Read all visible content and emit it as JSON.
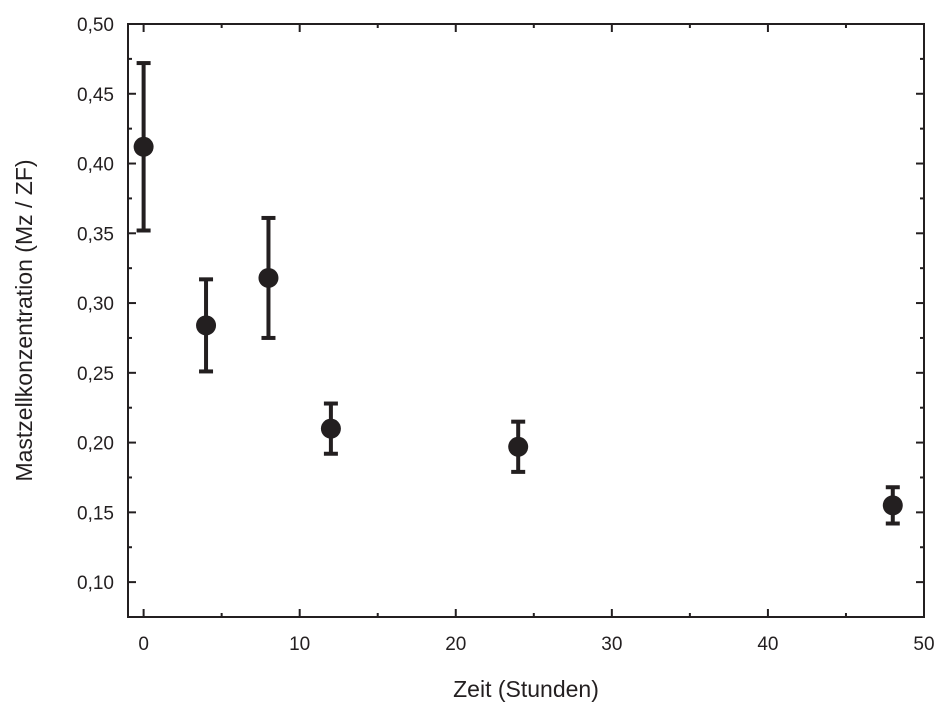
{
  "chart_data": {
    "type": "scatter",
    "title": "",
    "xlabel": "Zeit (Stunden)",
    "ylabel": "Mastzellkonzentration (Mz / ZF)",
    "xlim": [
      -1,
      50
    ],
    "ylim": [
      0.075,
      0.5
    ],
    "x_ticks": [
      0,
      10,
      20,
      30,
      40,
      50
    ],
    "x_tick_labels": [
      "0",
      "10",
      "20",
      "30",
      "40",
      "50"
    ],
    "y_ticks": [
      0.1,
      0.15,
      0.2,
      0.25,
      0.3,
      0.35,
      0.4,
      0.45,
      0.5
    ],
    "y_tick_labels": [
      "0,10",
      "0,15",
      "0,20",
      "0,25",
      "0,30",
      "0,35",
      "0,40",
      "0,45",
      "0,50"
    ],
    "grid": false,
    "legend": "none",
    "marker_color": "#231f20",
    "series": [
      {
        "points": [
          {
            "x": 0,
            "y": 0.412,
            "err_low": 0.352,
            "err_high": 0.472
          },
          {
            "x": 4,
            "y": 0.284,
            "err_low": 0.251,
            "err_high": 0.317
          },
          {
            "x": 8,
            "y": 0.318,
            "err_low": 0.275,
            "err_high": 0.361
          },
          {
            "x": 12,
            "y": 0.21,
            "err_low": 0.192,
            "err_high": 0.228
          },
          {
            "x": 24,
            "y": 0.197,
            "err_low": 0.179,
            "err_high": 0.215
          },
          {
            "x": 48,
            "y": 0.155,
            "err_low": 0.142,
            "err_high": 0.168
          }
        ]
      }
    ]
  }
}
